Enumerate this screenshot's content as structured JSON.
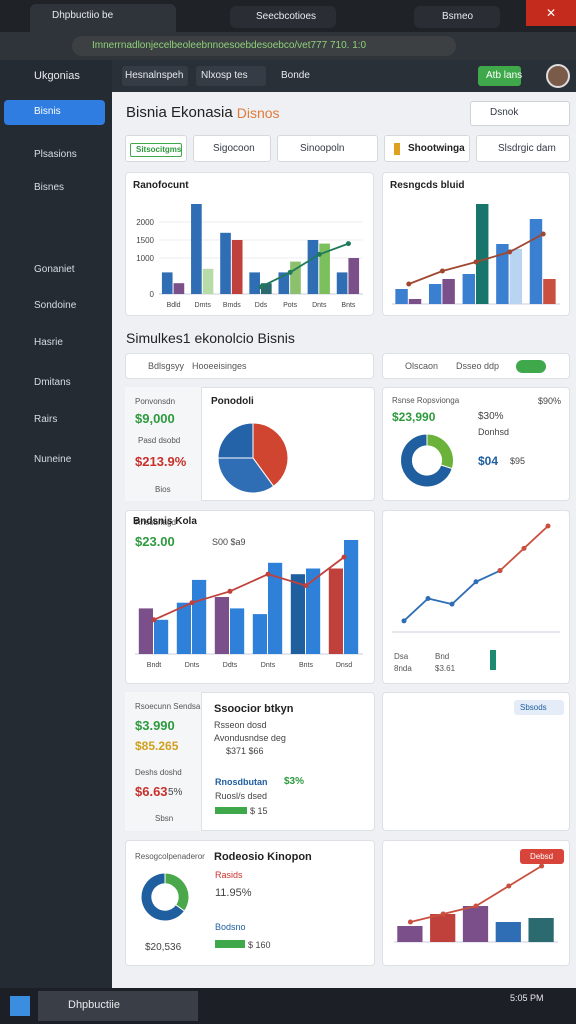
{
  "browser": {
    "tabs": [
      "Dhpbuctiio be",
      "Seecbcotioes",
      "Bsmeo"
    ],
    "url": "Imnerrnadlonjecelbeoleebnnoesoebdesoebco/vet777 710. 1:0"
  },
  "sidebar": {
    "brand": "Ukgonias",
    "items": [
      "Bisnis",
      "Plsasions",
      "Bisnes",
      "Gonaniet",
      "Sondoine",
      "Hasrie",
      "Dmitans",
      "Rairs",
      "Nuneine"
    ]
  },
  "topbar": {
    "tabs": [
      "Hesnalnspeh",
      "Nlxosp tes",
      "Bonde"
    ],
    "button": "Atb lans"
  },
  "header": {
    "title": "Bisnia Ekonasia",
    "accent": "Disnos",
    "search": "Dsnok"
  },
  "filters": [
    "Sitsocitgms",
    "Sigocoon",
    "Sinoopoln",
    "Shootwinga",
    "Slsdrgic dam"
  ],
  "section": {
    "title": "Simulkes1 ekonolcio Bisnis",
    "left": [
      "Bdlsgsyy",
      "Hooeeisinges"
    ],
    "right": [
      "Olscaon",
      "Dsseo ddp"
    ]
  },
  "cards": {
    "r2left": [
      "Ponvonsdn",
      "$9,000",
      "Pasd dsobd",
      "$213.9%",
      "Bios"
    ],
    "r2right": [
      "Rsnse Ropsvionga",
      "$23,990",
      "$30%",
      "Donhsd",
      "$04",
      "$95",
      "$90%"
    ],
    "r3left": [
      "Rnsobrlagd",
      "$23.00",
      "S00 $a9"
    ],
    "r3right": [
      "Dsa",
      "Bnd",
      "8nda",
      "$3.61"
    ],
    "r4left": [
      "Rsoecunn Sendsa",
      "$3.990",
      "$85.265",
      "Deshs doshd",
      "$6.63",
      "5%",
      "Sbsn"
    ],
    "r4main": [
      "Ssoocior btkyn",
      "Rsseon dosd",
      "Avondusndse deg",
      "$371 $66",
      "Rnosdbutan",
      "$3%",
      "Ruosl/s dsed",
      "$ 15"
    ],
    "r4right": [
      "Sbsods"
    ],
    "r5left": [
      "Resogcolpenaderor",
      "$20,536"
    ],
    "r5main": [
      "Rodeosio Kinopon",
      "Rasids",
      "11.95%",
      "Bodsno",
      "$ 160"
    ],
    "r5right": [
      "Debsd"
    ]
  },
  "taskbar": {
    "app": "Dhpbuctiie",
    "time": "5:05 PM"
  },
  "chart_data": [
    {
      "type": "bar",
      "title": "Ranofocunt",
      "categories": [
        "Bdld",
        "Dmts",
        "Bmds",
        "Dds",
        "Pots",
        "Dnts",
        "Bnts"
      ],
      "ylim": [
        0,
        2500
      ],
      "yticks": [
        0,
        1000,
        1500,
        2000
      ],
      "series": [
        {
          "color": "#2f6db5",
          "values": [
            600,
            2500,
            1700,
            600,
            600,
            1500,
            600
          ]
        },
        {
          "colors": [
            "#7a4f8a",
            "#b8dca8",
            "#c0413b",
            "#2b6a6e",
            "#8cc06c",
            "#7cc05e",
            "#7a4f8a"
          ],
          "values": [
            300,
            700,
            1500,
            300,
            900,
            1400,
            1000
          ]
        }
      ],
      "lines": [
        {
          "color": "#1f7a5a",
          "values": [
            null,
            null,
            null,
            200,
            600,
            1100,
            1400
          ]
        }
      ]
    },
    {
      "type": "bar",
      "title": "Resngcds bluid",
      "series": [
        {
          "color": "#3a7fd0",
          "values": [
            15,
            20,
            30,
            60,
            85
          ]
        },
        {
          "colors": [
            "#7a4f8a",
            "#7a4f8a",
            "#17756b",
            "#b8d4f0",
            "#c9503f"
          ],
          "values": [
            5,
            25,
            100,
            55,
            25
          ]
        }
      ],
      "lines": [
        {
          "color": "#a0472f",
          "values": [
            20,
            33,
            42,
            52,
            70
          ]
        }
      ]
    },
    {
      "type": "pie",
      "title": "Ponodoli",
      "values": [
        40,
        35,
        25
      ],
      "colors": [
        "#d0452f",
        "#2f6db5",
        "#2563a8"
      ]
    },
    {
      "type": "donut",
      "values": [
        30,
        70
      ],
      "colors": [
        "#6ab23a",
        "#1f5fa0"
      ]
    },
    {
      "type": "bar",
      "title": "Bndsnis Kola",
      "categories": [
        "Bndt",
        "Dnts",
        "Ddts",
        "Dnts",
        "Bnts",
        "Dnsd"
      ],
      "series": [
        {
          "colors": [
            "#7a4f8a",
            "#2f80d8",
            "#7a4f8a",
            "#2f80d8",
            "#1f5fa0",
            "#c0413b"
          ],
          "values": [
            40,
            45,
            50,
            35,
            70,
            75
          ]
        },
        {
          "color": "#2f80d8",
          "values": [
            30,
            65,
            40,
            80,
            75,
            100
          ]
        }
      ],
      "lines": [
        {
          "color": "#c0413b",
          "values": [
            30,
            45,
            55,
            70,
            60,
            85
          ]
        }
      ]
    },
    {
      "type": "line",
      "series": [
        {
          "color": "#2f6db5",
          "values": [
            10,
            30,
            25,
            45,
            55,
            null,
            null
          ]
        },
        {
          "color": "#c9503f",
          "values": [
            null,
            null,
            null,
            null,
            55,
            75,
            95
          ]
        }
      ]
    },
    {
      "type": "donut",
      "values": [
        35,
        65
      ],
      "colors": [
        "#4aa84a",
        "#1f5fa0"
      ]
    },
    {
      "type": "bar",
      "series": [
        {
          "colors": [
            "#7a4f8a",
            "#c0413b",
            "#7a4f8a",
            "#2f6db5",
            "#2b6a6e"
          ],
          "values": [
            20,
            35,
            45,
            25,
            30
          ]
        }
      ],
      "lines": [
        {
          "color": "#c9503f",
          "values": [
            25,
            35,
            45,
            70,
            95
          ]
        }
      ]
    }
  ]
}
